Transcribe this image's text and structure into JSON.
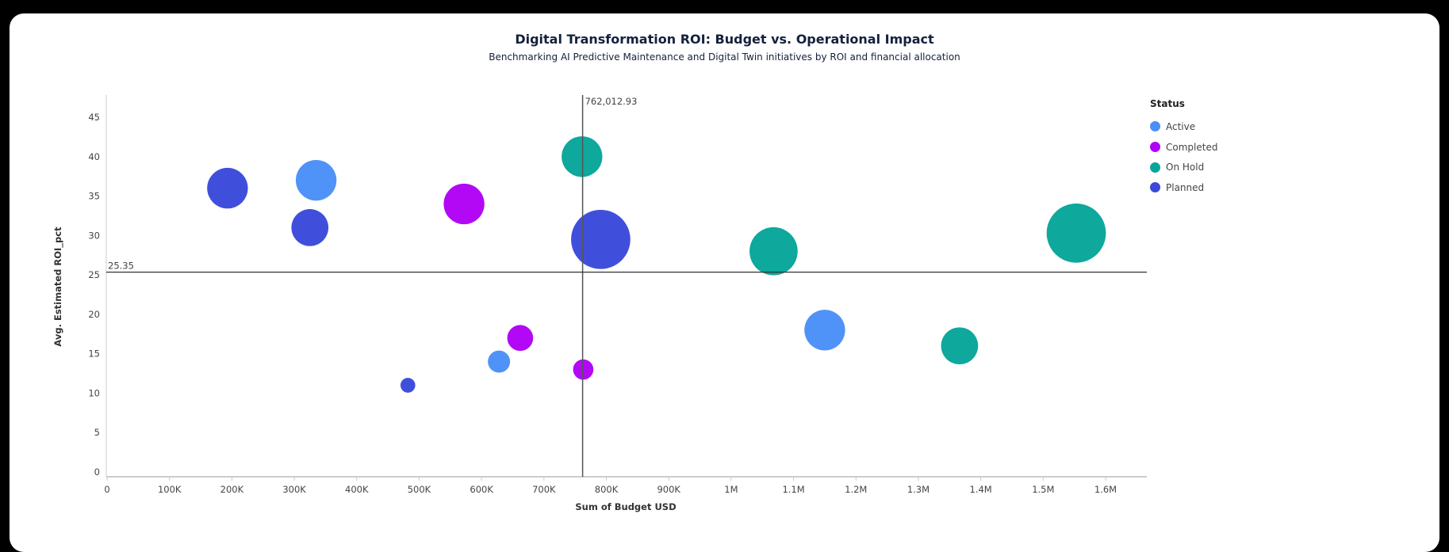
{
  "chart_data": {
    "type": "scatter",
    "title": "Digital Transformation ROI: Budget vs. Operational Impact",
    "subtitle": "Benchmarking AI Predictive Maintenance and Digital Twin initiatives by ROI and financial allocation",
    "xlabel": "Sum of Budget USD",
    "ylabel": "Avg. Estimated ROI_pct",
    "xlim": [
      0,
      1660000
    ],
    "ylim": [
      0,
      48
    ],
    "x_ticks": [
      0,
      100000,
      200000,
      300000,
      400000,
      500000,
      600000,
      700000,
      800000,
      900000,
      1000000,
      1100000,
      1200000,
      1300000,
      1400000,
      1500000,
      1600000
    ],
    "x_tick_labels": [
      "0",
      "100K",
      "200K",
      "300K",
      "400K",
      "500K",
      "600K",
      "700K",
      "800K",
      "900K",
      "1M",
      "1.1M",
      "1.2M",
      "1.3M",
      "1.4M",
      "1.5M",
      "1.6M"
    ],
    "y_ticks": [
      0,
      5,
      10,
      15,
      20,
      25,
      30,
      35,
      40,
      45
    ],
    "y_tick_labels": [
      "0",
      "5",
      "10",
      "15",
      "20",
      "25",
      "30",
      "35",
      "40",
      "45"
    ],
    "grid": false,
    "legend": {
      "title": "Status",
      "placement": "top-right"
    },
    "reference_lines": {
      "x": {
        "value": 762012.93,
        "label": "762,012.93"
      },
      "y": {
        "value": 25.35,
        "label": "25.35"
      }
    },
    "series": [
      {
        "name": "Active",
        "color": "#4A8FF8",
        "points": [
          {
            "x": 335000,
            "y": 37,
            "size": 22
          },
          {
            "x": 1150000,
            "y": 18,
            "size": 22
          },
          {
            "x": 628000,
            "y": 14,
            "size": 12
          }
        ]
      },
      {
        "name": "Completed",
        "color": "#B000F5",
        "points": [
          {
            "x": 572000,
            "y": 34,
            "size": 22
          },
          {
            "x": 662000,
            "y": 17,
            "size": 14
          },
          {
            "x": 763000,
            "y": 13,
            "size": 11
          }
        ]
      },
      {
        "name": "On Hold",
        "color": "#06A59A",
        "points": [
          {
            "x": 761000,
            "y": 40,
            "size": 22
          },
          {
            "x": 1068000,
            "y": 28,
            "size": 26
          },
          {
            "x": 1553000,
            "y": 30.3,
            "size": 32
          },
          {
            "x": 1366000,
            "y": 16,
            "size": 20
          }
        ]
      },
      {
        "name": "Planned",
        "color": "#3A49DA",
        "points": [
          {
            "x": 193000,
            "y": 36,
            "size": 22
          },
          {
            "x": 325000,
            "y": 31,
            "size": 20
          },
          {
            "x": 791000,
            "y": 29.5,
            "size": 32
          },
          {
            "x": 482000,
            "y": 11,
            "size": 8
          }
        ]
      }
    ]
  }
}
